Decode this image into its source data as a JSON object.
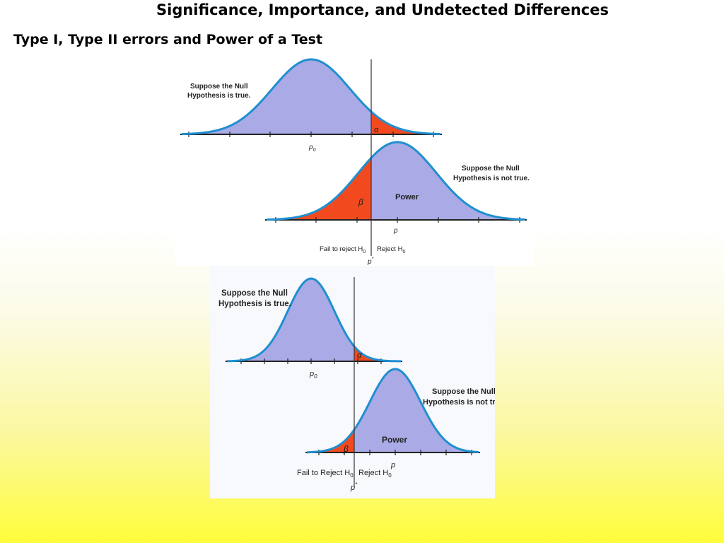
{
  "slide": {
    "title": "Significance, Importance,  and Undetected Differences",
    "subtitle": "Type I, Type II errors and Power of a Test"
  },
  "colors": {
    "curve": "#1f8fcf",
    "fill": "#a9aae6",
    "error_fill": "#f24a1e",
    "axis": "#222222"
  },
  "panels": [
    {
      "null_label_line1": "Suppose the Null",
      "null_label_line2": "Hypothesis is true.",
      "alt_label_line1": "Suppose the Null",
      "alt_label_line2": "Hypothesis is not true.",
      "alpha": "α",
      "beta": "β",
      "power": "Power",
      "p0": "p",
      "p0_sub": "0",
      "p": "p",
      "fail_to_reject": "Fail to reject H",
      "reject": "Reject H",
      "h_sub": "0",
      "p_star": "p",
      "p_star_sup": "*"
    },
    {
      "null_label_line1": "Suppose the Null",
      "null_label_line2": "Hypothesis is true.",
      "alt_label_line1": "Suppose the Null",
      "alt_label_line2": "Hypothesis is not true",
      "alpha": "α",
      "beta": "β",
      "power": "Power",
      "p0": "p",
      "p0_sub": "0",
      "p": "p",
      "fail_to_reject": "Fail to Reject H",
      "reject": "Reject H",
      "h_sub": "0",
      "p_star": "p",
      "p_star_sup": "*"
    }
  ]
}
